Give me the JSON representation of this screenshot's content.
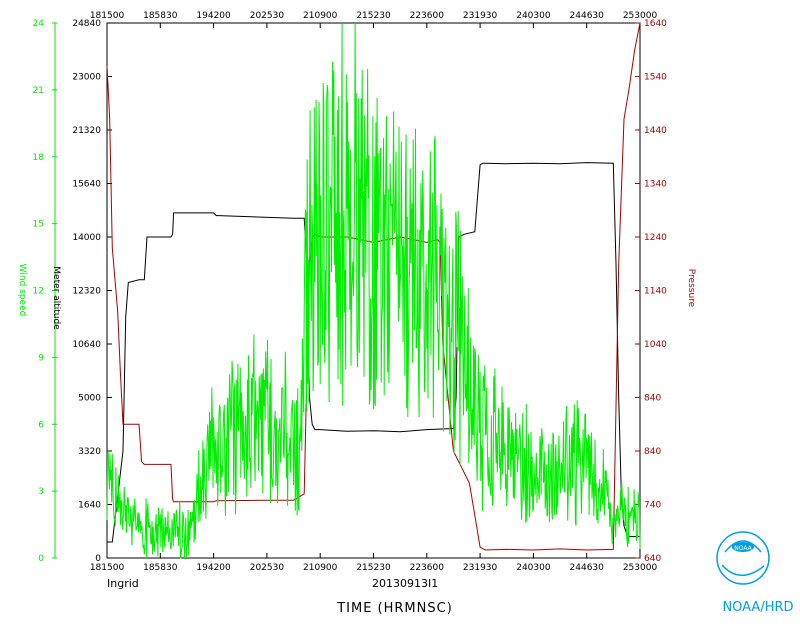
{
  "chart_data": {
    "type": "line",
    "x_ticks": [
      "181500",
      "185830",
      "194200",
      "202530",
      "210900",
      "215230",
      "223600",
      "231930",
      "240300",
      "244630",
      "253000"
    ],
    "xlabel": "TIME (HRMNSC)",
    "storm_name": "Ingrid",
    "flight_id": "20130913I1",
    "left_axis_1": {
      "label": "Wind speed",
      "color": "#00ee00",
      "ticks": [
        "0",
        "3",
        "6",
        "9",
        "12",
        "15",
        "18",
        "21",
        "24"
      ],
      "ylim": [
        0,
        25
      ]
    },
    "left_axis_2": {
      "label": "Meter altitude",
      "color": "#000000",
      "ticks": [
        "0",
        "1640",
        "3320",
        "5000",
        "10640",
        "12320",
        "14000",
        "15640",
        "21320",
        "23000",
        "24840"
      ]
    },
    "right_axis": {
      "label": "Pressure",
      "color": "#aa0000",
      "ticks": [
        "640",
        "740",
        "840",
        "840",
        "1040",
        "1140",
        "1240",
        "1340",
        "1440",
        "1540",
        "1640"
      ]
    },
    "series": [
      {
        "color": "#000000",
        "x": [
          0,
          0.01,
          0.03,
          0.035,
          0.04,
          0.06,
          0.07,
          0.075,
          0.12,
          0.123,
          0.125,
          0.2,
          0.205,
          0.21,
          0.35,
          0.37,
          0.375,
          0.38,
          0.385,
          0.39,
          0.4,
          0.45,
          0.5,
          0.55,
          0.6,
          0.65,
          0.655,
          0.66,
          0.67,
          0.69,
          0.7,
          0.705,
          0.71,
          0.75,
          0.8,
          0.85,
          0.9,
          0.95,
          0.955,
          0.96,
          0.965,
          0.97,
          0.975,
          0.98,
          1.0
        ],
        "y": [
          0.03,
          0.03,
          0.2,
          0.45,
          0.515,
          0.52,
          0.52,
          0.6,
          0.6,
          0.605,
          0.645,
          0.645,
          0.64,
          0.64,
          0.635,
          0.635,
          0.55,
          0.3,
          0.25,
          0.24,
          0.24,
          0.237,
          0.238,
          0.236,
          0.24,
          0.242,
          0.3,
          0.6,
          0.605,
          0.61,
          0.735,
          0.738,
          0.738,
          0.737,
          0.738,
          0.737,
          0.739,
          0.738,
          0.55,
          0.3,
          0.12,
          0.06,
          0.045,
          0.04,
          0.04
        ]
      },
      {
        "color": "#aa0000",
        "x": [
          0,
          0.005,
          0.01,
          0.02,
          0.025,
          0.03,
          0.06,
          0.065,
          0.07,
          0.12,
          0.123,
          0.125,
          0.2,
          0.205,
          0.21,
          0.3,
          0.35,
          0.37,
          0.375,
          0.38,
          0.385,
          0.39,
          0.4,
          0.45,
          0.5,
          0.55,
          0.6,
          0.62,
          0.625,
          0.63,
          0.65,
          0.68,
          0.69,
          0.7,
          0.71,
          0.75,
          0.8,
          0.85,
          0.9,
          0.95,
          0.96,
          0.97,
          0.98,
          0.99,
          1.0
        ],
        "y": [
          0.92,
          0.82,
          0.58,
          0.46,
          0.35,
          0.25,
          0.25,
          0.18,
          0.175,
          0.175,
          0.11,
          0.105,
          0.105,
          0.107,
          0.107,
          0.108,
          0.108,
          0.12,
          0.35,
          0.55,
          0.6,
          0.605,
          0.6,
          0.6,
          0.59,
          0.6,
          0.59,
          0.595,
          0.59,
          0.4,
          0.2,
          0.14,
          0.08,
          0.02,
          0.015,
          0.016,
          0.015,
          0.017,
          0.015,
          0.016,
          0.55,
          0.82,
          0.88,
          0.95,
          1.0
        ]
      }
    ]
  },
  "branding": {
    "logo_text": "NOAA",
    "org_label": "NOAA/HRD"
  }
}
